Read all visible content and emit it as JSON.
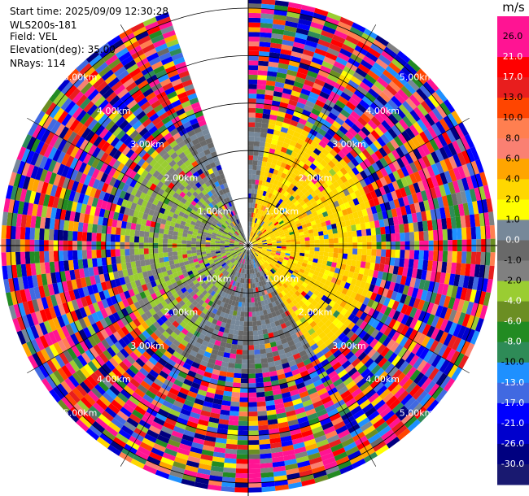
{
  "info": {
    "start_time": "Start time: 2025/09/09 12:30:28",
    "instrument": "WLS200s-181",
    "field": "Field: VEL",
    "elevation": "Elevation(deg): 35.00",
    "nrays": "NRays: 114"
  },
  "chart_data": {
    "type": "heatmap",
    "title": "",
    "projection": "polar PPI",
    "range_rings_km": [
      1,
      2,
      3,
      4,
      5
    ],
    "ring_labels": [
      "1.00km",
      "2.00km",
      "3.00km",
      "4.00km",
      "5.00km"
    ],
    "max_range_km": 5.2,
    "data_gap_azimuth_deg": [
      338,
      360
    ],
    "spokes_deg": [
      0,
      30,
      60,
      90,
      120,
      150,
      180,
      210,
      240,
      270,
      300,
      330
    ],
    "pattern": {
      "near_range_km": 2.7,
      "east_sector_mean_ms": 3.0,
      "west_sector_mean_ms": -2.0,
      "south_sector_mean_ms": 0.0,
      "far_range_noise": true
    },
    "colorbar": {
      "unit": "m/s",
      "tick_labels": [
        "26.0",
        "21.0",
        "17.0",
        "13.0",
        "10.0",
        "8.0",
        "6.0",
        "4.0",
        "2.0",
        "1.0",
        "0.0",
        "-1.0",
        "-2.0",
        "-4.0",
        "-6.0",
        "-8.0",
        "-10.0",
        "-13.0",
        "-17.0",
        "-21.0",
        "-26.0",
        "-30.0"
      ],
      "colors": [
        "#ff1493",
        "#ff1493",
        "#ff0000",
        "#e81e1e",
        "#ff4500",
        "#ff7f50",
        "#fa8072",
        "#ffa500",
        "#ffd700",
        "#ffff00",
        "#778899",
        "#696969",
        "#808080",
        "#9acd32",
        "#6b8e23",
        "#228b22",
        "#2e8b57",
        "#1e90ff",
        "#4169e1",
        "#0000ff",
        "#0000cd",
        "#000080",
        "#191970"
      ]
    }
  }
}
